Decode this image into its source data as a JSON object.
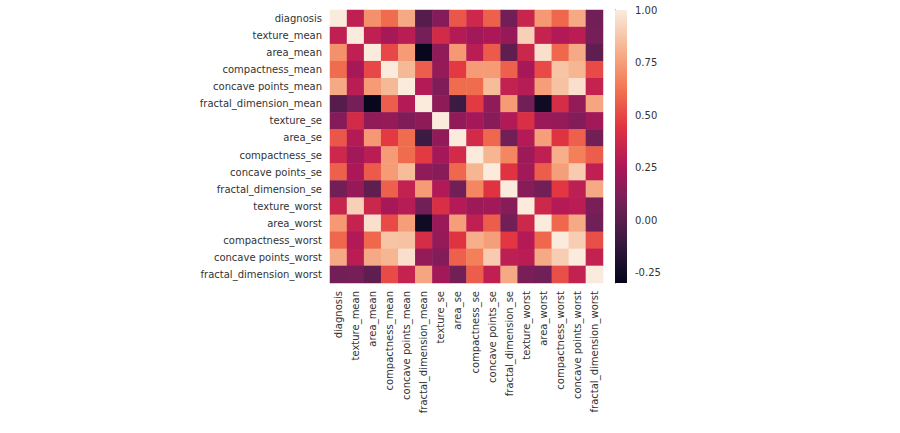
{
  "chart_data": {
    "type": "heatmap",
    "categories": [
      "diagnosis",
      "texture_mean",
      "area_mean",
      "compactness_mean",
      "concave points_mean",
      "fractal_dimension_mean",
      "texture_se",
      "area_se",
      "compactness_se",
      "concave points_se",
      "fractal_dimension_se",
      "texture_worst",
      "area_worst",
      "compactness_worst",
      "concave points_worst",
      "fractal_dimension_worst"
    ],
    "values": [
      [
        1.0,
        0.32,
        0.71,
        0.6,
        0.78,
        -0.01,
        0.13,
        0.54,
        0.37,
        0.57,
        0.08,
        0.35,
        0.73,
        0.59,
        0.78,
        0.08
      ],
      [
        0.32,
        1.0,
        0.32,
        0.24,
        0.3,
        0.09,
        0.39,
        0.28,
        0.22,
        0.25,
        0.19,
        0.91,
        0.34,
        0.27,
        0.3,
        0.09
      ],
      [
        0.71,
        0.32,
        1.0,
        0.5,
        0.74,
        -0.28,
        0.17,
        0.73,
        0.3,
        0.55,
        0.02,
        0.36,
        0.96,
        0.59,
        0.78,
        0.02
      ],
      [
        0.6,
        0.24,
        0.5,
        1.0,
        0.83,
        0.56,
        0.19,
        0.46,
        0.74,
        0.74,
        0.57,
        0.24,
        0.51,
        0.87,
        0.82,
        0.51
      ],
      [
        0.78,
        0.3,
        0.74,
        0.83,
        1.0,
        0.28,
        0.12,
        0.6,
        0.6,
        0.84,
        0.33,
        0.29,
        0.75,
        0.86,
        0.96,
        0.34
      ],
      [
        -0.01,
        0.09,
        -0.28,
        0.56,
        0.28,
        1.0,
        0.16,
        -0.09,
        0.46,
        0.17,
        0.74,
        0.08,
        -0.25,
        0.4,
        0.18,
        0.77
      ],
      [
        0.13,
        0.39,
        0.17,
        0.19,
        0.12,
        0.16,
        1.0,
        0.17,
        0.23,
        0.14,
        0.27,
        0.41,
        0.2,
        0.19,
        0.13,
        0.22
      ],
      [
        0.54,
        0.28,
        0.73,
        0.46,
        0.6,
        -0.09,
        0.17,
        1.0,
        0.39,
        0.59,
        0.07,
        0.28,
        0.75,
        0.44,
        0.57,
        0.07
      ],
      [
        0.37,
        0.22,
        0.3,
        0.74,
        0.6,
        0.46,
        0.23,
        0.39,
        1.0,
        0.82,
        0.68,
        0.21,
        0.32,
        0.8,
        0.66,
        0.56
      ],
      [
        0.57,
        0.25,
        0.55,
        0.74,
        0.84,
        0.17,
        0.14,
        0.59,
        0.82,
        1.0,
        0.44,
        0.22,
        0.56,
        0.75,
        0.89,
        0.32
      ],
      [
        0.08,
        0.19,
        0.02,
        0.57,
        0.33,
        0.74,
        0.27,
        0.07,
        0.68,
        0.44,
        1.0,
        0.14,
        0.08,
        0.45,
        0.31,
        0.78
      ],
      [
        0.35,
        0.91,
        0.36,
        0.24,
        0.29,
        0.08,
        0.41,
        0.28,
        0.21,
        0.22,
        0.14,
        1.0,
        0.37,
        0.28,
        0.3,
        0.1
      ],
      [
        0.73,
        0.34,
        0.96,
        0.51,
        0.75,
        -0.25,
        0.2,
        0.75,
        0.32,
        0.56,
        0.08,
        0.37,
        1.0,
        0.59,
        0.78,
        0.07
      ],
      [
        0.59,
        0.27,
        0.59,
        0.87,
        0.86,
        0.4,
        0.19,
        0.44,
        0.8,
        0.75,
        0.45,
        0.28,
        0.59,
        1.0,
        0.9,
        0.52
      ],
      [
        0.78,
        0.3,
        0.78,
        0.82,
        0.96,
        0.18,
        0.13,
        0.57,
        0.66,
        0.89,
        0.31,
        0.3,
        0.78,
        0.9,
        1.0,
        0.33
      ],
      [
        0.08,
        0.09,
        0.02,
        0.51,
        0.34,
        0.77,
        0.22,
        0.07,
        0.56,
        0.32,
        0.78,
        0.1,
        0.07,
        0.52,
        0.33,
        1.0
      ]
    ],
    "colorbar_range": [
      -0.3,
      1.0
    ],
    "colorbar_ticks": [
      {
        "value": 1.0,
        "label": "1.00"
      },
      {
        "value": 0.75,
        "label": "0.75"
      },
      {
        "value": 0.5,
        "label": "0.50"
      },
      {
        "value": 0.25,
        "label": "0.25"
      },
      {
        "value": 0.0,
        "label": "0.00"
      },
      {
        "value": -0.25,
        "label": "-0.25"
      }
    ]
  }
}
